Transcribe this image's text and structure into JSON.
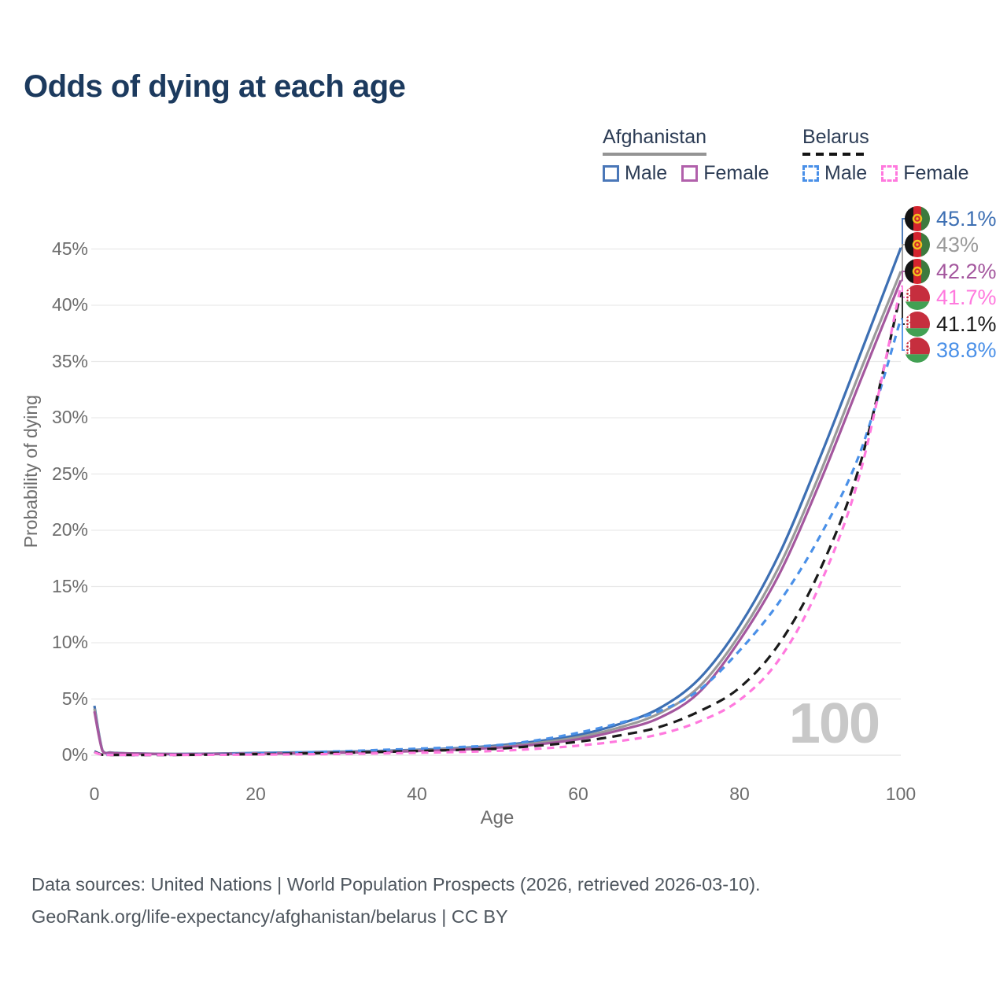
{
  "title": "Odds of dying at each age",
  "watermark": "100",
  "legend": {
    "afghanistan": {
      "label": "Afghanistan",
      "line_color": "#9a9a9a",
      "line_style": "solid",
      "male": {
        "label": "Male",
        "color": "#3d6fb3"
      },
      "female": {
        "label": "Female",
        "color": "#a4579e"
      }
    },
    "belarus": {
      "label": "Belarus",
      "line_color": "#1a1a1a",
      "line_style": "dashed",
      "male": {
        "label": "Male",
        "color": "#4a90e8"
      },
      "female": {
        "label": "Female",
        "color": "#ff79de"
      }
    }
  },
  "axes": {
    "y_label": "Probability of dying",
    "x_label": "Age",
    "y_ticks": [
      "0%",
      "5%",
      "10%",
      "15%",
      "20%",
      "25%",
      "30%",
      "35%",
      "40%",
      "45%"
    ],
    "y_tick_values": [
      0,
      5,
      10,
      15,
      20,
      25,
      30,
      35,
      40,
      45
    ],
    "x_ticks": [
      "0",
      "20",
      "40",
      "60",
      "80",
      "100"
    ],
    "x_tick_values": [
      0,
      20,
      40,
      60,
      80,
      100
    ]
  },
  "chart_data": {
    "type": "line",
    "title": "Odds of dying at each age",
    "xlabel": "Age",
    "ylabel": "Probability of dying",
    "x_range": [
      0,
      100
    ],
    "ylim_pct": [
      0,
      47
    ],
    "grid": "horizontal",
    "legend_position": "top-right",
    "series": [
      {
        "name": "Afghanistan Male",
        "country": "afghanistan",
        "sex": "male",
        "color": "#3d6fb3",
        "line_style": "solid",
        "end_label": "45.1%",
        "points": [
          [
            0,
            4.4
          ],
          [
            1,
            0.42
          ],
          [
            2,
            0.25
          ],
          [
            3,
            0.2
          ],
          [
            5,
            0.16
          ],
          [
            10,
            0.12
          ],
          [
            15,
            0.15
          ],
          [
            20,
            0.2
          ],
          [
            25,
            0.25
          ],
          [
            30,
            0.31
          ],
          [
            35,
            0.38
          ],
          [
            40,
            0.48
          ],
          [
            45,
            0.63
          ],
          [
            50,
            0.87
          ],
          [
            55,
            1.25
          ],
          [
            60,
            1.8
          ],
          [
            65,
            2.75
          ],
          [
            70,
            4.15
          ],
          [
            75,
            6.8
          ],
          [
            80,
            11.5
          ],
          [
            85,
            18.0
          ],
          [
            90,
            26.5
          ],
          [
            95,
            35.7
          ],
          [
            100,
            45.1
          ]
        ]
      },
      {
        "name": "Afghanistan Total",
        "country": "afghanistan",
        "sex": "all",
        "color": "#9a9a9a",
        "line_style": "solid",
        "end_label": "43%",
        "points": [
          [
            0,
            4.15
          ],
          [
            1,
            0.4
          ],
          [
            2,
            0.23
          ],
          [
            3,
            0.19
          ],
          [
            5,
            0.15
          ],
          [
            10,
            0.11
          ],
          [
            15,
            0.13
          ],
          [
            20,
            0.17
          ],
          [
            25,
            0.21
          ],
          [
            30,
            0.26
          ],
          [
            35,
            0.33
          ],
          [
            40,
            0.43
          ],
          [
            45,
            0.56
          ],
          [
            50,
            0.77
          ],
          [
            55,
            1.1
          ],
          [
            60,
            1.6
          ],
          [
            65,
            2.45
          ],
          [
            70,
            3.7
          ],
          [
            75,
            6.1
          ],
          [
            80,
            10.7
          ],
          [
            85,
            16.9
          ],
          [
            90,
            25.1
          ],
          [
            95,
            34.2
          ],
          [
            100,
            43.0
          ]
        ]
      },
      {
        "name": "Afghanistan Female",
        "country": "afghanistan",
        "sex": "female",
        "color": "#a4579e",
        "line_style": "solid",
        "end_label": "42.2%",
        "points": [
          [
            0,
            3.9
          ],
          [
            1,
            0.38
          ],
          [
            2,
            0.21
          ],
          [
            3,
            0.17
          ],
          [
            5,
            0.14
          ],
          [
            10,
            0.1
          ],
          [
            15,
            0.11
          ],
          [
            20,
            0.14
          ],
          [
            25,
            0.17
          ],
          [
            30,
            0.22
          ],
          [
            35,
            0.28
          ],
          [
            40,
            0.37
          ],
          [
            45,
            0.49
          ],
          [
            50,
            0.68
          ],
          [
            55,
            0.97
          ],
          [
            60,
            1.42
          ],
          [
            65,
            2.2
          ],
          [
            70,
            3.3
          ],
          [
            75,
            5.6
          ],
          [
            80,
            10.2
          ],
          [
            85,
            16.2
          ],
          [
            90,
            24.3
          ],
          [
            95,
            33.3
          ],
          [
            100,
            42.2
          ]
        ]
      },
      {
        "name": "Belarus Male",
        "country": "belarus",
        "sex": "male",
        "color": "#4a90e8",
        "line_style": "dashed",
        "end_label": "38.8%",
        "points": [
          [
            0,
            0.35
          ],
          [
            1,
            0.05
          ],
          [
            2,
            0.04
          ],
          [
            3,
            0.035
          ],
          [
            5,
            0.03
          ],
          [
            10,
            0.04
          ],
          [
            15,
            0.09
          ],
          [
            20,
            0.16
          ],
          [
            25,
            0.24
          ],
          [
            30,
            0.34
          ],
          [
            35,
            0.46
          ],
          [
            40,
            0.58
          ],
          [
            45,
            0.72
          ],
          [
            50,
            0.9
          ],
          [
            55,
            1.35
          ],
          [
            60,
            2.0
          ],
          [
            65,
            2.85
          ],
          [
            70,
            3.9
          ],
          [
            75,
            5.8
          ],
          [
            80,
            9.3
          ],
          [
            85,
            13.7
          ],
          [
            90,
            19.5
          ],
          [
            95,
            27.0
          ],
          [
            100,
            38.8
          ]
        ]
      },
      {
        "name": "Belarus Total",
        "country": "belarus",
        "sex": "all",
        "color": "#1a1a1a",
        "line_style": "dashed",
        "end_label": "41.1%",
        "points": [
          [
            0,
            0.3
          ],
          [
            1,
            0.04
          ],
          [
            2,
            0.03
          ],
          [
            3,
            0.025
          ],
          [
            5,
            0.02
          ],
          [
            10,
            0.03
          ],
          [
            15,
            0.06
          ],
          [
            20,
            0.1
          ],
          [
            25,
            0.15
          ],
          [
            30,
            0.21
          ],
          [
            35,
            0.29
          ],
          [
            40,
            0.38
          ],
          [
            45,
            0.47
          ],
          [
            50,
            0.58
          ],
          [
            55,
            0.85
          ],
          [
            60,
            1.2
          ],
          [
            65,
            1.75
          ],
          [
            70,
            2.5
          ],
          [
            75,
            3.9
          ],
          [
            80,
            6.0
          ],
          [
            85,
            10.0
          ],
          [
            90,
            16.5
          ],
          [
            95,
            26.0
          ],
          [
            100,
            41.1
          ]
        ]
      },
      {
        "name": "Belarus Female",
        "country": "belarus",
        "sex": "female",
        "color": "#ff79de",
        "line_style": "dashed",
        "end_label": "41.7%",
        "points": [
          [
            0,
            0.25
          ],
          [
            1,
            0.03
          ],
          [
            2,
            0.02
          ],
          [
            3,
            0.02
          ],
          [
            5,
            0.02
          ],
          [
            10,
            0.02
          ],
          [
            15,
            0.04
          ],
          [
            20,
            0.06
          ],
          [
            25,
            0.08
          ],
          [
            30,
            0.11
          ],
          [
            35,
            0.16
          ],
          [
            40,
            0.22
          ],
          [
            45,
            0.29
          ],
          [
            50,
            0.39
          ],
          [
            55,
            0.58
          ],
          [
            60,
            0.85
          ],
          [
            65,
            1.25
          ],
          [
            70,
            1.85
          ],
          [
            75,
            3.0
          ],
          [
            80,
            4.9
          ],
          [
            85,
            8.6
          ],
          [
            90,
            15.2
          ],
          [
            95,
            25.2
          ],
          [
            100,
            41.7
          ]
        ]
      }
    ]
  },
  "footer": {
    "line1": "Data sources: United Nations | World Population Prospects (2026, retrieved 2026-03-10).",
    "line2": "GeoRank.org/life-expectancy/afghanistan/belarus | CC BY"
  }
}
